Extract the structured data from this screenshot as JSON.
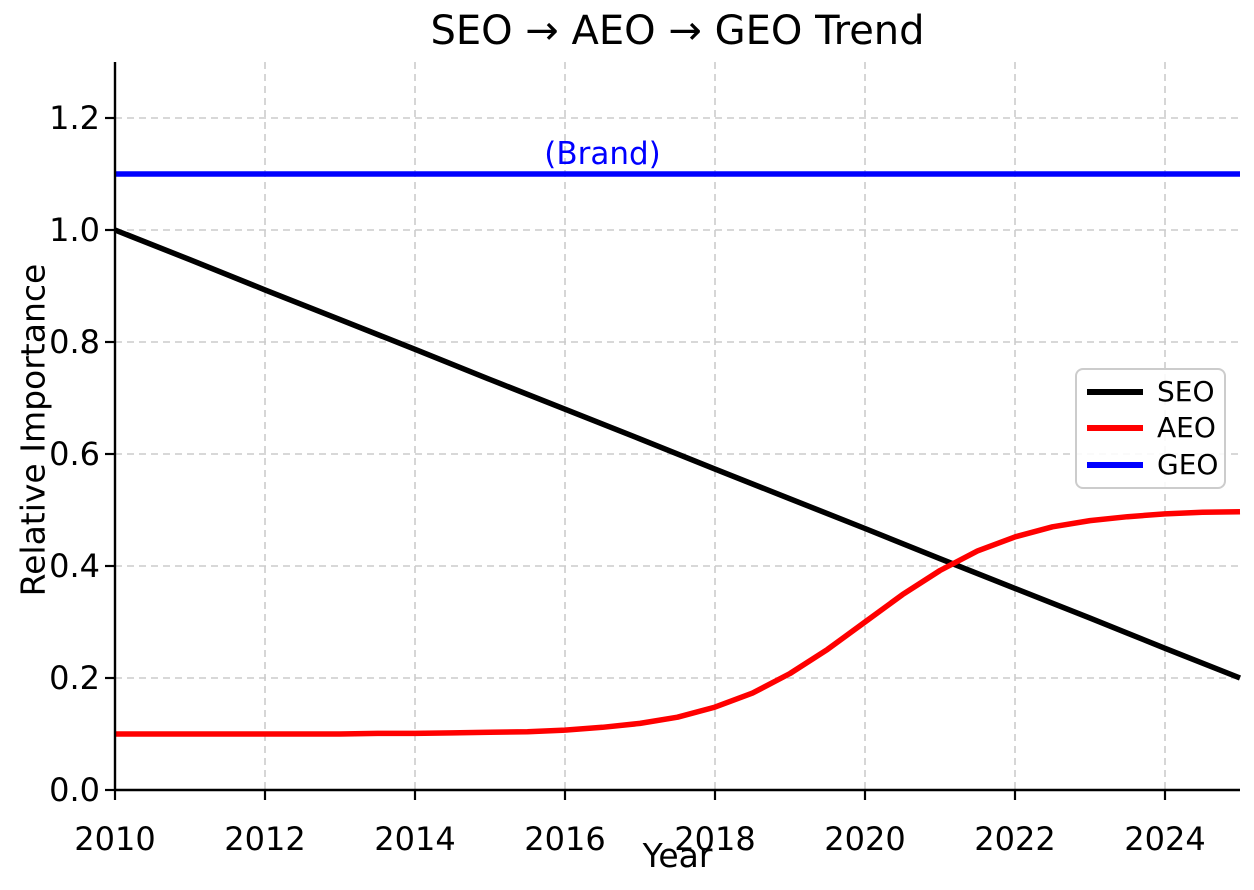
{
  "chart_data": {
    "type": "line",
    "title": "SEO → AEO → GEO Trend",
    "xlabel": "Year",
    "ylabel": "Relative Importance",
    "xlim": [
      2010,
      2025
    ],
    "ylim": [
      0.0,
      1.3
    ],
    "xticks": [
      2010,
      2012,
      2014,
      2016,
      2018,
      2020,
      2022,
      2024
    ],
    "xtick_labels": [
      "2010",
      "2012",
      "2014",
      "2016",
      "2018",
      "2020",
      "2022",
      "2024"
    ],
    "yticks": [
      0.0,
      0.2,
      0.4,
      0.6,
      0.8,
      1.0,
      1.2
    ],
    "ytick_labels": [
      "0.0",
      "0.2",
      "0.4",
      "0.6",
      "0.8",
      "1.0",
      "1.2"
    ],
    "grid": true,
    "grid_style": "dashed",
    "grid_color": "#cccccc",
    "legend_position": "center right",
    "annotation": {
      "text": "(Brand)",
      "x": 2016.5,
      "y": 1.135,
      "color": "#0000ff"
    },
    "series": [
      {
        "name": "SEO",
        "color": "#000000",
        "x": [
          2010,
          2011,
          2012,
          2013,
          2014,
          2015,
          2016,
          2017,
          2018,
          2019,
          2020,
          2021,
          2022,
          2023,
          2024,
          2025
        ],
        "values": [
          1.0,
          0.947,
          0.893,
          0.84,
          0.787,
          0.733,
          0.68,
          0.627,
          0.573,
          0.52,
          0.467,
          0.413,
          0.36,
          0.307,
          0.253,
          0.2
        ]
      },
      {
        "name": "AEO",
        "color": "#ff0000",
        "x": [
          2010,
          2010.5,
          2011,
          2011.5,
          2012,
          2012.5,
          2013,
          2013.5,
          2014,
          2014.5,
          2015,
          2015.5,
          2016,
          2016.5,
          2017,
          2017.5,
          2018,
          2018.5,
          2019,
          2019.5,
          2020,
          2020.5,
          2021,
          2021.5,
          2022,
          2022.5,
          2023,
          2023.5,
          2024,
          2024.5,
          2025
        ],
        "values": [
          0.1,
          0.1,
          0.1,
          0.1,
          0.1,
          0.1,
          0.1,
          0.101,
          0.101,
          0.102,
          0.103,
          0.104,
          0.107,
          0.112,
          0.119,
          0.13,
          0.148,
          0.173,
          0.208,
          0.251,
          0.3,
          0.349,
          0.392,
          0.427,
          0.452,
          0.47,
          0.481,
          0.488,
          0.493,
          0.496,
          0.497
        ]
      },
      {
        "name": "GEO",
        "color": "#0000ff",
        "x": [
          2010,
          2025
        ],
        "values": [
          1.1,
          1.1
        ]
      }
    ]
  }
}
